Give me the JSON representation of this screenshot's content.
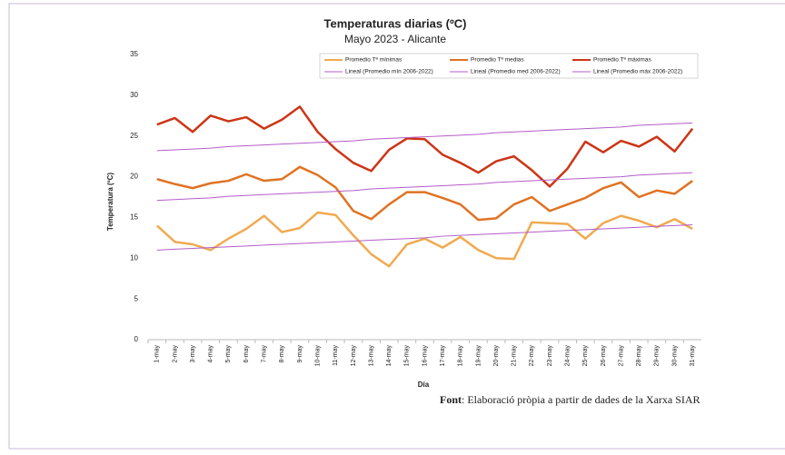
{
  "chart_data": {
    "type": "line",
    "title": "Temperaturas diarias (ºC)",
    "subtitle": "Mayo 2023 - Alicante",
    "x_label": "Día",
    "y_label": "Temperatura (ºC)",
    "categories": [
      "1-may",
      "2-may",
      "3-may",
      "4-may",
      "5-may",
      "6-may",
      "7-may",
      "8-may",
      "9-may",
      "10-may",
      "11-may",
      "12-may",
      "13-may",
      "14-may",
      "15-may",
      "16-may",
      "17-may",
      "18-may",
      "19-may",
      "20-may",
      "21-may",
      "22-may",
      "23-may",
      "24-may",
      "25-may",
      "26-may",
      "27-may",
      "28-may",
      "29-may",
      "30-may",
      "31-may"
    ],
    "ylim": [
      0,
      35
    ],
    "yticks": [
      0,
      5,
      10,
      15,
      20,
      25,
      30,
      35
    ],
    "grid": false,
    "legend": "top",
    "series": [
      {
        "name": "Promedio Tª mínimas",
        "color": "#f0aa50",
        "width": 2.5,
        "values": [
          14.0,
          12.0,
          11.7,
          11.0,
          12.4,
          13.6,
          15.2,
          13.2,
          13.7,
          15.6,
          15.3,
          12.8,
          10.5,
          9.0,
          11.7,
          12.4,
          11.3,
          12.6,
          11.0,
          10.0,
          9.9,
          14.4,
          14.3,
          14.2,
          12.4,
          14.3,
          15.2,
          14.6,
          13.8,
          14.8,
          13.6
        ]
      },
      {
        "name": "Promedio Tª medias",
        "color": "#e07222",
        "width": 2.5,
        "values": [
          19.7,
          19.1,
          18.6,
          19.2,
          19.5,
          20.3,
          19.5,
          19.7,
          21.2,
          20.2,
          18.7,
          15.8,
          14.8,
          16.6,
          18.1,
          18.1,
          17.4,
          16.6,
          14.7,
          14.9,
          16.6,
          17.5,
          15.8,
          16.6,
          17.4,
          18.6,
          19.3,
          17.5,
          18.3,
          17.9,
          19.5
        ]
      },
      {
        "name": "Promedio Tª máximas",
        "color": "#cc3515",
        "width": 2.5,
        "values": [
          26.4,
          27.2,
          25.5,
          27.5,
          26.8,
          27.3,
          25.9,
          27.0,
          28.6,
          25.5,
          23.4,
          21.7,
          20.7,
          23.3,
          24.7,
          24.6,
          22.7,
          21.7,
          20.5,
          21.9,
          22.5,
          20.8,
          18.8,
          21.0,
          24.3,
          23.0,
          24.4,
          23.7,
          24.9,
          23.1,
          25.9
        ]
      },
      {
        "name": "Lineal (Promedio mín 2006-2022)",
        "color": "#b45cc8",
        "width": 1,
        "values": [
          11.0,
          11.1,
          11.2,
          11.3,
          11.4,
          11.5,
          11.6,
          11.7,
          11.8,
          11.9,
          12.0,
          12.1,
          12.2,
          12.3,
          12.4,
          12.5,
          12.7,
          12.8,
          12.9,
          13.0,
          13.1,
          13.2,
          13.3,
          13.4,
          13.5,
          13.6,
          13.7,
          13.8,
          13.9,
          14.0,
          14.1
        ]
      },
      {
        "name": "Lineal (Promedio med 2006-2022)",
        "color": "#b45cc8",
        "width": 1,
        "values": [
          17.1,
          17.2,
          17.3,
          17.4,
          17.6,
          17.7,
          17.8,
          17.9,
          18.0,
          18.1,
          18.2,
          18.3,
          18.5,
          18.6,
          18.7,
          18.8,
          18.9,
          19.0,
          19.1,
          19.3,
          19.4,
          19.5,
          19.6,
          19.7,
          19.8,
          19.9,
          20.0,
          20.2,
          20.3,
          20.4,
          20.5
        ]
      },
      {
        "name": "Lineal (Promedio máx 2006-2022)",
        "color": "#b45cc8",
        "width": 1,
        "values": [
          23.2,
          23.3,
          23.4,
          23.5,
          23.7,
          23.8,
          23.9,
          24.0,
          24.1,
          24.2,
          24.3,
          24.4,
          24.6,
          24.7,
          24.8,
          24.9,
          25.0,
          25.1,
          25.2,
          25.4,
          25.5,
          25.6,
          25.7,
          25.8,
          25.9,
          26.0,
          26.1,
          26.3,
          26.4,
          26.5,
          26.6
        ]
      }
    ],
    "source": {
      "label": "Font",
      "text": ": Elaboració pròpia a partir de dades de la Xarxa SIAR"
    }
  }
}
